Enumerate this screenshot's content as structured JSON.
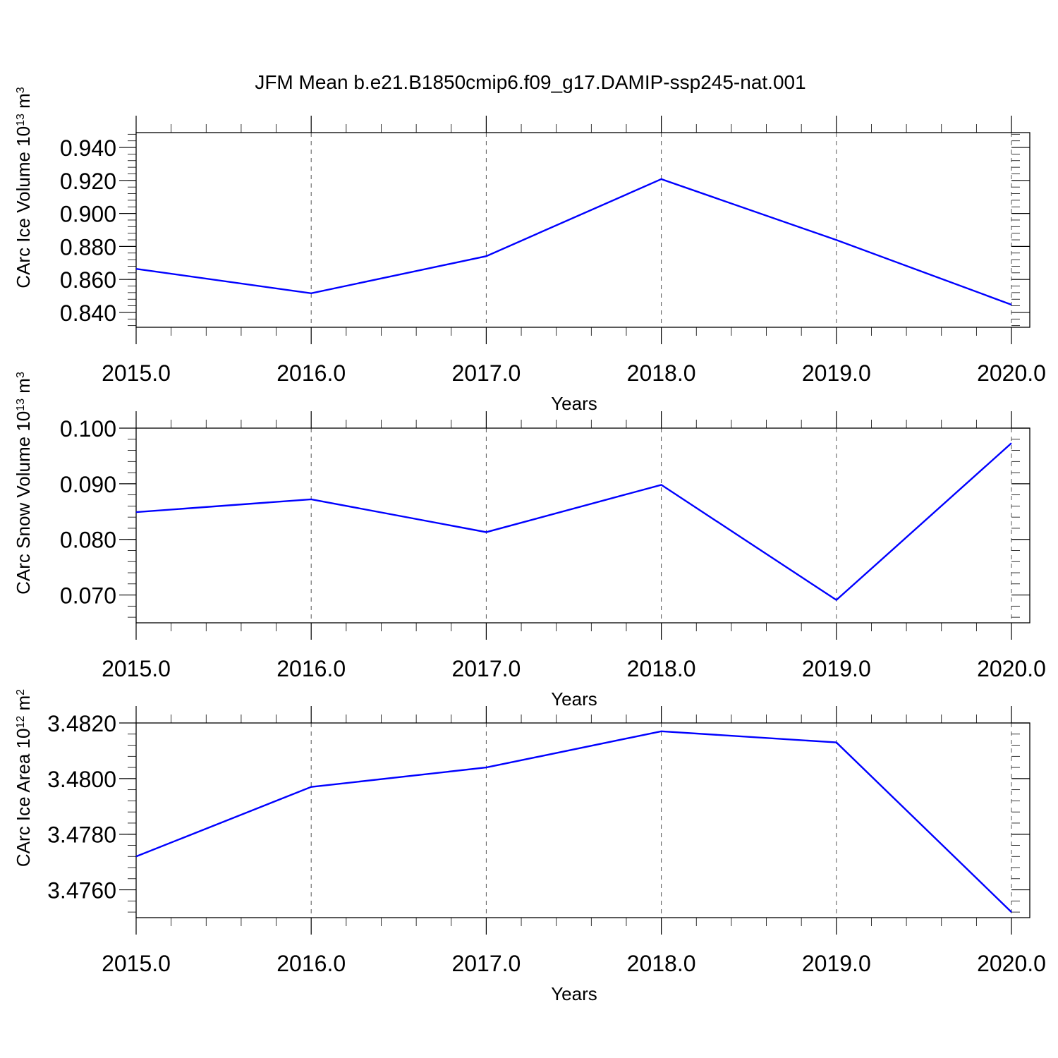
{
  "figure": {
    "title": "JFM Mean b.e21.B1850cmip6.f09_g17.DAMIP-ssp245-nat.001"
  },
  "colors": {
    "series": "#0000ff",
    "axis": "#000000",
    "grid": "#555555"
  },
  "chart_data": [
    {
      "type": "line",
      "title": "",
      "xlabel": "Years",
      "ylabel": "CArc Ice Volume 10",
      "ylabel_exp": "13",
      "ylabel_unit": " m",
      "ylabel_unit_exp": "3",
      "x": [
        2015,
        2016,
        2017,
        2018,
        2019,
        2020
      ],
      "xlim": [
        2015,
        2020
      ],
      "xticks": [
        "2015.0",
        "2016.0",
        "2017.0",
        "2018.0",
        "2019.0",
        "2020.0"
      ],
      "ylim": [
        0.831,
        0.949
      ],
      "yticks": [
        0.84,
        0.86,
        0.88,
        0.9,
        0.92,
        0.94
      ],
      "ytick_labels": [
        "0.840",
        "0.860",
        "0.880",
        "0.900",
        "0.920",
        "0.940"
      ],
      "yminor_step": 0.004,
      "grid": "vertical dashed",
      "series": [
        {
          "values": [
            0.8664,
            0.8516,
            0.8741,
            0.9208,
            0.8839,
            0.8447
          ]
        }
      ]
    },
    {
      "type": "line",
      "title": "",
      "xlabel": "Years",
      "ylabel": "CArc Snow Volume 10",
      "ylabel_exp": "13",
      "ylabel_unit": " m",
      "ylabel_unit_exp": "3",
      "x": [
        2015,
        2016,
        2017,
        2018,
        2019,
        2020
      ],
      "xlim": [
        2015,
        2020
      ],
      "xticks": [
        "2015.0",
        "2016.0",
        "2017.0",
        "2018.0",
        "2019.0",
        "2020.0"
      ],
      "ylim": [
        0.065,
        0.1
      ],
      "yticks": [
        0.07,
        0.08,
        0.09,
        0.1
      ],
      "ytick_labels": [
        "0.070",
        "0.080",
        "0.090",
        "0.100"
      ],
      "yminor_step": 0.002,
      "grid": "vertical dashed",
      "series": [
        {
          "values": [
            0.0849,
            0.0872,
            0.0813,
            0.0898,
            0.0691,
            0.0973
          ]
        }
      ]
    },
    {
      "type": "line",
      "title": "",
      "xlabel": "Years",
      "ylabel": "CArc Ice Area 10",
      "ylabel_exp": "12",
      "ylabel_unit": " m",
      "ylabel_unit_exp": "2",
      "x": [
        2015,
        2016,
        2017,
        2018,
        2019,
        2020
      ],
      "xlim": [
        2015,
        2020
      ],
      "xticks": [
        "2015.0",
        "2016.0",
        "2017.0",
        "2018.0",
        "2019.0",
        "2020.0"
      ],
      "ylim": [
        3.475,
        3.482
      ],
      "yticks": [
        3.476,
        3.478,
        3.48,
        3.482
      ],
      "ytick_labels": [
        "3.4760",
        "3.4780",
        "3.4800",
        "3.4820"
      ],
      "yminor_step": 0.0004,
      "grid": "vertical dashed",
      "series": [
        {
          "values": [
            3.4772,
            3.4797,
            3.4804,
            3.4817,
            3.4813,
            3.4752
          ]
        }
      ]
    }
  ]
}
